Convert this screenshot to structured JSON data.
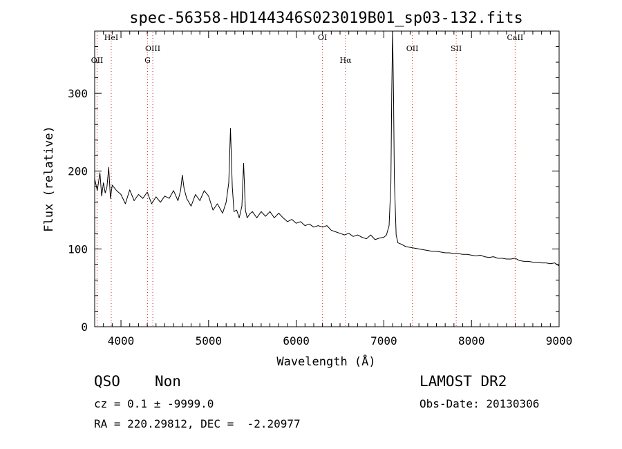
{
  "chart_data": {
    "type": "line",
    "title": "spec-56358-HD144346S023019B01_sp03-132.fits",
    "xlabel": "Wavelength (Å)",
    "ylabel": "Flux (relative)",
    "xlim": [
      3700,
      9000
    ],
    "ylim": [
      0,
      380
    ],
    "xticks": [
      4000,
      5000,
      6000,
      7000,
      8000,
      9000
    ],
    "yticks": [
      0,
      100,
      200,
      300
    ],
    "grid": false,
    "series": [
      {
        "name": "",
        "color": "#000000",
        "x": [
          3700,
          3730,
          3760,
          3780,
          3800,
          3820,
          3840,
          3860,
          3880,
          3900,
          3950,
          4000,
          4050,
          4100,
          4150,
          4200,
          4250,
          4300,
          4350,
          4400,
          4450,
          4500,
          4550,
          4600,
          4650,
          4680,
          4700,
          4720,
          4750,
          4800,
          4850,
          4900,
          4950,
          5000,
          5050,
          5100,
          5130,
          5160,
          5200,
          5230,
          5250,
          5270,
          5290,
          5320,
          5350,
          5380,
          5400,
          5420,
          5440,
          5470,
          5500,
          5550,
          5600,
          5650,
          5700,
          5750,
          5800,
          5850,
          5900,
          5950,
          6000,
          6050,
          6100,
          6150,
          6200,
          6250,
          6300,
          6350,
          6400,
          6450,
          6500,
          6550,
          6600,
          6650,
          6700,
          6750,
          6800,
          6850,
          6900,
          6950,
          7000,
          7030,
          7060,
          7080,
          7090,
          7100,
          7110,
          7120,
          7140,
          7160,
          7200,
          7250,
          7300,
          7350,
          7400,
          7450,
          7500,
          7550,
          7600,
          7650,
          7700,
          7750,
          7800,
          7850,
          7900,
          7950,
          8000,
          8050,
          8100,
          8150,
          8200,
          8250,
          8300,
          8350,
          8400,
          8450,
          8500,
          8550,
          8600,
          8650,
          8700,
          8750,
          8800,
          8850,
          8900,
          8950,
          9000
        ],
        "y": [
          190,
          175,
          198,
          168,
          185,
          172,
          180,
          205,
          165,
          182,
          175,
          170,
          158,
          176,
          162,
          170,
          165,
          173,
          158,
          167,
          160,
          168,
          165,
          175,
          162,
          175,
          195,
          178,
          165,
          155,
          170,
          162,
          175,
          168,
          150,
          158,
          152,
          146,
          160,
          185,
          255,
          180,
          148,
          150,
          140,
          155,
          210,
          150,
          140,
          145,
          148,
          140,
          148,
          142,
          148,
          140,
          146,
          140,
          135,
          138,
          133,
          135,
          130,
          132,
          128,
          130,
          128,
          130,
          124,
          122,
          120,
          118,
          120,
          116,
          118,
          115,
          113,
          118,
          112,
          114,
          115,
          118,
          130,
          185,
          300,
          380,
          300,
          190,
          118,
          108,
          106,
          103,
          102,
          101,
          100,
          99,
          98,
          97,
          97,
          96,
          95,
          95,
          94,
          94,
          93,
          93,
          92,
          91,
          92,
          90,
          89,
          90,
          88,
          88,
          87,
          87,
          88,
          85,
          84,
          84,
          83,
          83,
          82,
          82,
          81,
          82,
          78
        ]
      }
    ],
    "lines": [
      {
        "label": "OII",
        "x": 3727
      },
      {
        "label": "HeI",
        "x": 3889
      },
      {
        "label": "G",
        "x": 4304
      },
      {
        "label": "OIII",
        "x": 4363
      },
      {
        "label": "OI",
        "x": 6300
      },
      {
        "label": "Hα",
        "x": 6563
      },
      {
        "label": "OII",
        "x": 7325
      },
      {
        "label": "SII",
        "x": 7826
      },
      {
        "label": "CaII",
        "x": 8498
      }
    ],
    "line_color": "#d02020"
  },
  "info": {
    "class": "QSO",
    "subclass": "Non",
    "cz": "cz = 0.1 ± -9999.0",
    "radec": "RA = 220.29812, DEC =  -2.20977",
    "survey": "LAMOST DR2",
    "obsdate": "Obs-Date: 20130306"
  }
}
